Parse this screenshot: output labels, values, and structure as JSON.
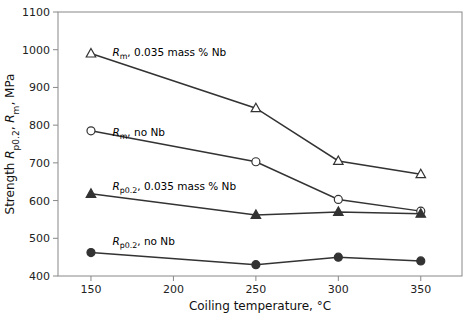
{
  "chart_data": {
    "type": "line",
    "color": "#333333",
    "x": [
      150,
      250,
      300,
      350
    ],
    "series": [
      {
        "marker": "triangle-open",
        "values": [
          990,
          845,
          705,
          670
        ]
      },
      {
        "marker": "circle-open",
        "values": [
          785,
          703,
          603,
          572
        ]
      },
      {
        "marker": "triangle",
        "values": [
          618,
          562,
          570,
          565
        ]
      },
      {
        "marker": "circle",
        "values": [
          462,
          430,
          450,
          440
        ]
      }
    ],
    "annotations": [
      {
        "text": "Rm, 0.035 mass % Nb",
        "x": 163,
        "y": 995
      },
      {
        "text": "Rm, no Nb",
        "x": 163,
        "y": 782
      },
      {
        "text": "Rp0.2, 0.035 mass % Nb",
        "x": 163,
        "y": 638
      },
      {
        "text": "Rp0.2, no Nb",
        "x": 163,
        "y": 492
      }
    ],
    "x_label": "Coiling temperature, °C",
    "y_label": "Strength Rp0.2, Rm, MPa",
    "xlim": [
      130,
      375
    ],
    "ylim": [
      400,
      1100
    ],
    "xticks": [
      150,
      200,
      250,
      300,
      350
    ],
    "yticks": [
      400,
      500,
      600,
      700,
      800,
      900,
      1000,
      1100
    ],
    "grid": false
  }
}
